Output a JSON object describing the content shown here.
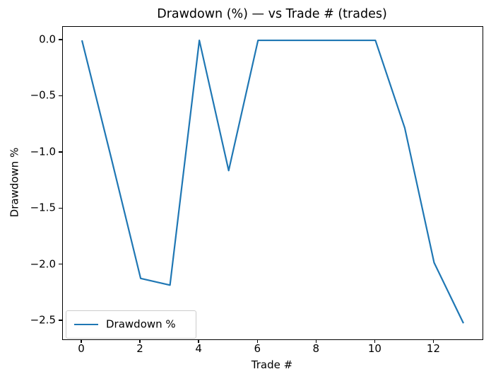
{
  "figure": {
    "background": "#ffffff",
    "axes_edge_color": "#000000"
  },
  "chart_data": {
    "type": "line",
    "title": "Drawdown (%) — vs Trade # (trades)",
    "xlabel": "Trade #",
    "ylabel": "Drawdown %",
    "x": [
      0,
      1,
      2,
      3,
      4,
      5,
      6,
      7,
      8,
      9,
      10,
      11,
      12,
      13
    ],
    "series": [
      {
        "name": "Drawdown %",
        "color": "#1f77b4",
        "line_width": 2.2,
        "values": [
          0.0,
          -1.05,
          -2.12,
          -2.18,
          0.0,
          -1.16,
          0.0,
          0.0,
          0.0,
          0.0,
          0.0,
          -0.78,
          -1.98,
          -2.52
        ]
      }
    ],
    "xlim": [
      -0.65,
      13.65
    ],
    "ylim": [
      -2.663,
      0.12
    ],
    "xticks": {
      "values": [
        0,
        2,
        4,
        6,
        8,
        10,
        12
      ],
      "labels": [
        "0",
        "2",
        "4",
        "6",
        "8",
        "10",
        "12"
      ]
    },
    "yticks": {
      "values": [
        0.0,
        -0.5,
        -1.0,
        -1.5,
        -2.0,
        -2.5
      ],
      "labels": [
        "0.0",
        "−0.5",
        "−1.0",
        "−1.5",
        "−2.0",
        "−2.5"
      ]
    },
    "grid": false,
    "legend": {
      "position": "lower left",
      "entries": [
        "Drawdown %"
      ]
    }
  }
}
